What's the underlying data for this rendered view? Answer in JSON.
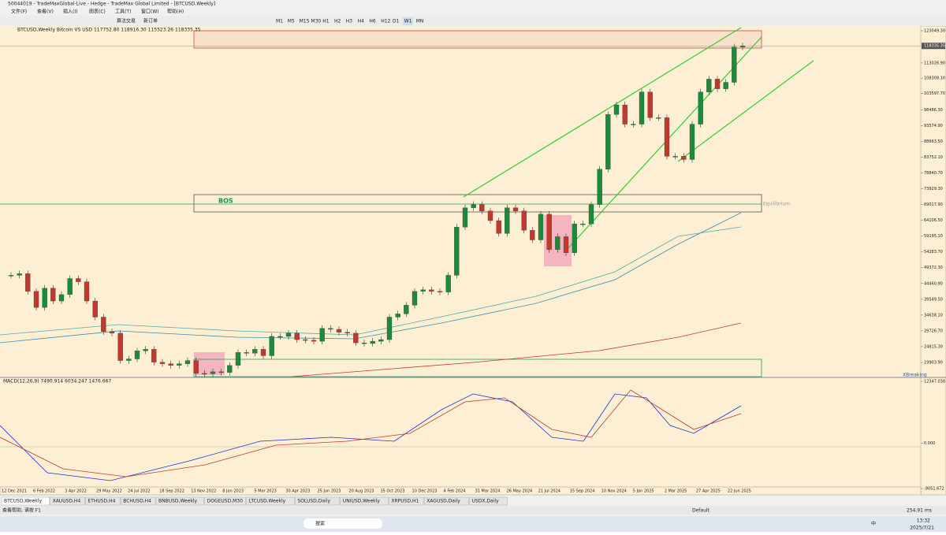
{
  "window": {
    "title": "50044019 - TradeMaxGlobal-Live - Hedge - TradeMax Global Limited - [BTCUSD,Weekly]"
  },
  "menu": [
    "文件(F)",
    "查看(V)",
    "插入(I)",
    "图表(C)",
    "工具(T)",
    "窗口(W)",
    "帮助(H)"
  ],
  "toolbar": {
    "buttons": [
      "算法交易",
      "新订单"
    ],
    "timeframes": [
      "M1",
      "M5",
      "M15",
      "M30",
      "H1",
      "H2",
      "H3",
      "H4",
      "H6",
      "H12",
      "D1",
      "W1",
      "MN"
    ]
  },
  "chart": {
    "header": "BTCUSD,Weekly  Bitcoin VS USD  117752.80 118916.30 115523.26 118335.35",
    "price_ticks": [
      {
        "value": 123049.3,
        "label": "123049.30"
      },
      {
        "value": 113026.9,
        "label": "113026.90"
      },
      {
        "value": 108309.1,
        "label": "108309.10"
      },
      {
        "value": 103597.7,
        "label": "103597.70"
      },
      {
        "value": 98486.3,
        "label": "98486.30"
      },
      {
        "value": 93574.9,
        "label": "93574.90"
      },
      {
        "value": 88663.5,
        "label": "88663.50"
      },
      {
        "value": 83752.1,
        "label": "83752.10"
      },
      {
        "value": 78840.7,
        "label": "78840.70"
      },
      {
        "value": 73929.3,
        "label": "73929.30"
      },
      {
        "value": 69017.9,
        "label": "69017.90"
      },
      {
        "value": 64106.5,
        "label": "64106.50"
      },
      {
        "value": 59195.1,
        "label": "59195.10"
      },
      {
        "value": 54283.7,
        "label": "54283.70"
      },
      {
        "value": 49372.3,
        "label": "49372.30"
      },
      {
        "value": 44460.9,
        "label": "44460.90"
      },
      {
        "value": 39549.5,
        "label": "39549.50"
      },
      {
        "value": 34638.1,
        "label": "34638.10"
      },
      {
        "value": 29726.7,
        "label": "29726.70"
      },
      {
        "value": 24815.3,
        "label": "24815.30"
      },
      {
        "value": 19903.9,
        "label": "19903.90"
      }
    ],
    "current_price": {
      "value": 118335.35,
      "label": "118335.35"
    },
    "dates": [
      "12 Dec 2021",
      "6 Feb 2022",
      "3 Apr 2022",
      "29 May 2022",
      "24 Jul 2022",
      "18 Sep 2022",
      "13 Nov 2022",
      "8 Jan 2023",
      "5 Mar 2023",
      "30 Apr 2023",
      "25 Jun 2023",
      "20 Aug 2023",
      "15 Oct 2023",
      "10 Dec 2023",
      "4 Feb 2024",
      "31 Mar 2024",
      "26 May 2024",
      "21 Jul 2024",
      "15 Sep 2024",
      "10 Nov 2024",
      "5 Jan 2025",
      "2 Mar 2025",
      "27 Apr 2025",
      "22 Jun 2025"
    ],
    "closes": [
      47000,
      47500,
      42000,
      37000,
      43000,
      39000,
      41000,
      46000,
      45000,
      39000,
      34000,
      29500,
      29000,
      20500,
      21000,
      23500,
      24000,
      20000,
      19500,
      19000,
      19500,
      20500,
      16500,
      16400,
      17000,
      16800,
      19000,
      23000,
      22800,
      24000,
      22000,
      28000,
      28000,
      29000,
      27000,
      26800,
      26500,
      30500,
      30200,
      29300,
      29000,
      26000,
      25800,
      26500,
      27000,
      34000,
      35000,
      37700,
      42000,
      42500,
      42000,
      41800,
      47000,
      62000,
      68000,
      69000,
      67000,
      64000,
      60000,
      68000,
      67000,
      61000,
      58000,
      66000,
      55000,
      59000,
      54000,
      63000,
      63000,
      69000,
      80000,
      97000,
      100000,
      94000,
      94000,
      104000,
      96000,
      96000,
      84000,
      84000,
      83000,
      94000,
      104000,
      108000,
      105000,
      107000,
      118000,
      118335
    ],
    "annotations": {
      "bos": "BOS",
      "equilibrium": "Equilibrium",
      "breaking": "XBreaking"
    },
    "macd": {
      "label": "MACD(12,26,9) 7490.914 6034.247 1476.667",
      "ticks": [
        12347.038,
        {
          "value": 0,
          "label": "0.000"
        },
        -9051.672
      ]
    }
  },
  "tabs": [
    "BTCUSD,Weekly",
    "XAUUSD,H4",
    "ETHUSD,H4",
    "BCHUSD,H4",
    "BNBUSD,Weekly",
    "DOGEUSD,M30",
    "LTCUSD,Weekly",
    "SOLUSD,Daily",
    "UNIUSD,Weekly",
    "XRPUSD,H1",
    "XAGUSD,Daily",
    "USDX,Daily"
  ],
  "status": {
    "help": "查看帮助, 请按 F1",
    "profile": "Default",
    "ping": "254.91 ms"
  },
  "taskbar": {
    "search": "搜索",
    "ime": "中",
    "time": "13:32",
    "date": "2025/7/21"
  }
}
